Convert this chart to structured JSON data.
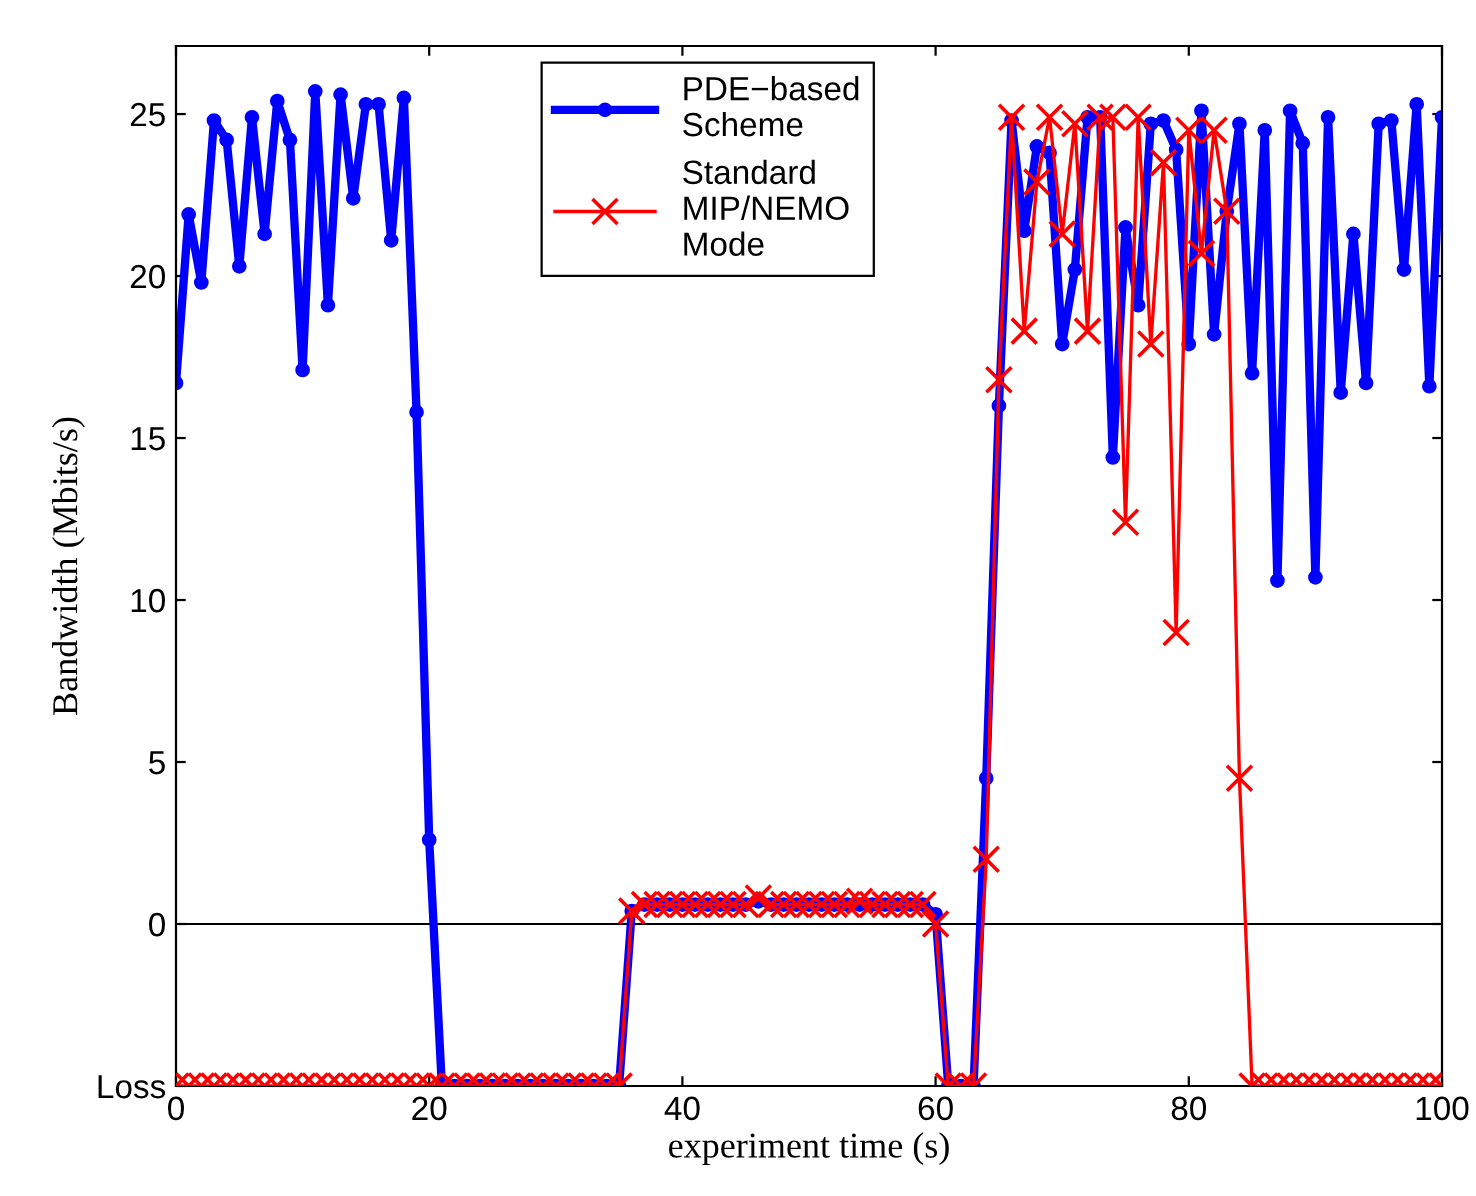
{
  "chart_data": {
    "type": "line",
    "xlabel": "experiment time (s)",
    "ylabel": "Bandwidth (Mbits/s)",
    "x": [
      0,
      1,
      2,
      3,
      4,
      5,
      6,
      7,
      8,
      9,
      10,
      11,
      12,
      13,
      14,
      15,
      16,
      17,
      18,
      19,
      20,
      21,
      22,
      23,
      24,
      25,
      26,
      27,
      28,
      29,
      30,
      31,
      32,
      33,
      34,
      35,
      36,
      37,
      38,
      39,
      40,
      41,
      42,
      43,
      44,
      45,
      46,
      47,
      48,
      49,
      50,
      51,
      52,
      53,
      54,
      55,
      56,
      57,
      58,
      59,
      60,
      61,
      62,
      63,
      64,
      65,
      66,
      67,
      68,
      69,
      70,
      71,
      72,
      73,
      74,
      75,
      76,
      77,
      78,
      79,
      80,
      81,
      82,
      83,
      84,
      85,
      86,
      87,
      88,
      89,
      90,
      91,
      92,
      93,
      94,
      95,
      96,
      97,
      98,
      99,
      100
    ],
    "series": [
      {
        "name": "PDE−based\nScheme",
        "color": "#0000ff",
        "marker": "circle",
        "values": [
          16.7,
          21.9,
          19.8,
          24.8,
          24.2,
          20.3,
          24.9,
          21.3,
          25.4,
          24.2,
          17.1,
          25.7,
          19.1,
          25.6,
          22.4,
          25.3,
          25.3,
          21.1,
          25.5,
          15.8,
          2.6,
          -5,
          -5,
          -5,
          -5,
          -5,
          -5,
          -5,
          -5,
          -5,
          -5,
          -5,
          -5,
          -5,
          -5,
          -5,
          0.4,
          0.6,
          0.6,
          0.6,
          0.6,
          0.6,
          0.6,
          0.6,
          0.6,
          0.6,
          0.7,
          0.6,
          0.6,
          0.6,
          0.6,
          0.6,
          0.6,
          0.6,
          0.6,
          0.6,
          0.6,
          0.6,
          0.6,
          0.6,
          0.3,
          -5,
          -5,
          -5,
          4.5,
          16.0,
          24.8,
          21.4,
          24.0,
          23.8,
          17.9,
          20.2,
          24.9,
          24.9,
          14.4,
          21.5,
          19.1,
          24.7,
          24.8,
          23.9,
          17.9,
          25.1,
          18.2,
          22.0,
          24.7,
          17.0,
          24.5,
          10.6,
          25.1,
          24.1,
          10.7,
          24.9,
          16.4,
          21.3,
          16.7,
          24.7,
          24.8,
          20.2,
          25.3,
          16.6,
          24.9
        ]
      },
      {
        "name": "Standard\nMIP/NEMO\nMode",
        "color": "#ff0000",
        "marker": "cross",
        "values": [
          -5,
          -5,
          -5,
          -5,
          -5,
          -5,
          -5,
          -5,
          -5,
          -5,
          -5,
          -5,
          -5,
          -5,
          -5,
          -5,
          -5,
          -5,
          -5,
          -5,
          -5,
          -5,
          -5,
          -5,
          -5,
          -5,
          -5,
          -5,
          -5,
          -5,
          -5,
          -5,
          -5,
          -5,
          -5,
          -5,
          0.4,
          0.6,
          0.6,
          0.6,
          0.6,
          0.6,
          0.6,
          0.6,
          0.6,
          0.6,
          0.8,
          0.6,
          0.6,
          0.6,
          0.6,
          0.6,
          0.6,
          0.6,
          0.7,
          0.6,
          0.6,
          0.6,
          0.6,
          0.6,
          0.0,
          -5,
          -5,
          -5,
          2.0,
          16.8,
          24.9,
          18.3,
          22.9,
          24.9,
          21.3,
          24.7,
          18.3,
          24.9,
          24.9,
          12.4,
          24.9,
          17.9,
          23.5,
          9.0,
          24.5,
          20.7,
          24.5,
          22.0,
          4.5,
          -5,
          -5,
          -5,
          -5,
          -5,
          -5,
          -5,
          -5,
          -5,
          -5,
          -5,
          -5,
          -5,
          -5,
          -5,
          -5
        ]
      }
    ],
    "xlim": [
      0,
      100
    ],
    "xticks": [
      0,
      20,
      40,
      60,
      80,
      100
    ],
    "ylim": [
      -5,
      27.1
    ],
    "yticks": [
      {
        "value": -5,
        "label": "Loss"
      },
      0,
      5,
      10,
      15,
      20,
      25
    ],
    "ref_lines": [
      {
        "axis": "y",
        "value": 0,
        "color": "#000000"
      }
    ],
    "legend": "top",
    "grid": false,
    "line_style": "solid"
  }
}
